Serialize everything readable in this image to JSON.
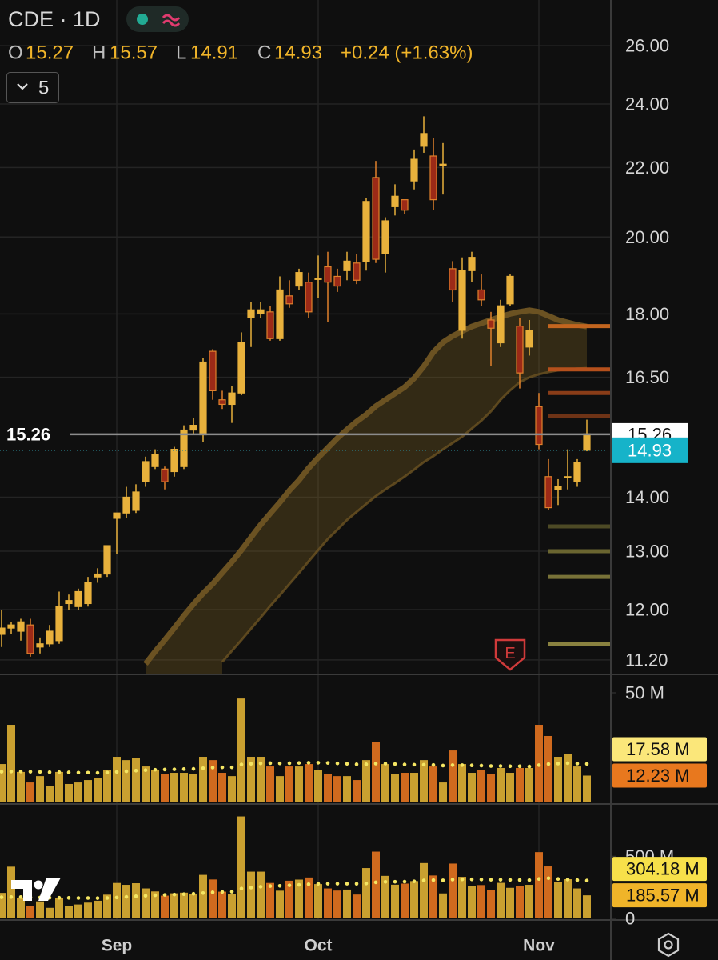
{
  "chart_data": [
    {
      "type": "candlestick",
      "title": "CDE · 1D",
      "indicator_count": "5",
      "ohlc_labels": [
        "O",
        "H",
        "L",
        "C"
      ],
      "change": "+0.24 (+1.63%)",
      "price_line": 15.26,
      "earnings_label": "E",
      "log_scale": true,
      "grid": true,
      "up_color": "#e8b13c",
      "down_color": "#9c2a17",
      "down_border": "#e0812c",
      "close_label_color": "#16b3c9",
      "categories": [
        null,
        null,
        null,
        null,
        null,
        null,
        null,
        null,
        null,
        null,
        null,
        null,
        "Sep",
        null,
        null,
        null,
        null,
        null,
        null,
        null,
        null,
        null,
        null,
        null,
        null,
        null,
        null,
        null,
        null,
        null,
        null,
        null,
        null,
        "Oct",
        null,
        null,
        null,
        null,
        null,
        null,
        null,
        null,
        null,
        null,
        null,
        null,
        null,
        null,
        null,
        null,
        null,
        null,
        null,
        null,
        null,
        null,
        "Nov",
        null,
        null,
        null,
        null,
        null
      ],
      "open": [
        11.6,
        11.7,
        11.65,
        11.75,
        11.4,
        11.45,
        11.5,
        12.1,
        12.05,
        12.1,
        12.55,
        12.6,
        13.6,
        13.7,
        13.75,
        14.3,
        14.6,
        14.55,
        14.5,
        14.6,
        15.35,
        15.25,
        17.1,
        16.0,
        15.9,
        16.15,
        17.9,
        18.0,
        18.05,
        17.4,
        18.25,
        18.7,
        18.05,
        18.9,
        19.2,
        18.95,
        19.1,
        19.3,
        19.35,
        21.7,
        20.45,
        20.85,
        21.05,
        21.6,
        22.65,
        22.35,
        22.1,
        19.15,
        17.6,
        19.1,
        18.6,
        17.85,
        17.3,
        18.95,
        17.7,
        17.6,
        15.85,
        14.4,
        14.15,
        14.4,
        14.3,
        15.27
      ],
      "high": [
        12.0,
        11.8,
        11.85,
        11.85,
        11.55,
        11.75,
        12.3,
        12.25,
        12.35,
        12.55,
        12.7,
        13.1,
        13.7,
        14.2,
        14.25,
        14.8,
        14.95,
        14.6,
        15.0,
        15.45,
        15.6,
        16.95,
        17.15,
        16.2,
        16.3,
        17.55,
        18.3,
        18.3,
        18.2,
        18.95,
        18.85,
        19.15,
        19.05,
        19.5,
        19.6,
        19.15,
        19.6,
        19.55,
        21.1,
        22.2,
        20.55,
        21.5,
        21.05,
        22.55,
        23.6,
        22.9,
        22.75,
        19.35,
        19.45,
        19.6,
        19.0,
        18.05,
        18.35,
        19.0,
        17.9,
        17.85,
        16.15,
        14.75,
        14.35,
        14.95,
        14.75,
        15.57
      ],
      "low": [
        11.4,
        11.6,
        11.5,
        11.25,
        11.3,
        11.4,
        11.45,
        12.0,
        12.0,
        12.05,
        12.45,
        12.55,
        12.95,
        13.6,
        13.7,
        14.2,
        14.55,
        14.15,
        14.4,
        14.55,
        15.25,
        15.1,
        16.0,
        15.8,
        15.5,
        16.1,
        17.2,
        17.9,
        17.35,
        17.35,
        18.15,
        18.6,
        17.9,
        18.4,
        17.8,
        18.55,
        18.85,
        18.75,
        19.1,
        19.3,
        19.05,
        20.6,
        20.65,
        21.35,
        22.45,
        20.75,
        21.2,
        18.3,
        17.4,
        18.8,
        18.2,
        16.75,
        17.2,
        18.2,
        16.25,
        17.0,
        14.95,
        13.75,
        13.85,
        14.15,
        14.2,
        14.91
      ],
      "close": [
        11.7,
        11.75,
        11.8,
        11.3,
        11.45,
        11.65,
        12.05,
        12.15,
        12.3,
        12.45,
        12.6,
        13.1,
        13.7,
        14.0,
        14.1,
        14.7,
        14.85,
        14.3,
        14.95,
        15.35,
        15.45,
        16.85,
        16.2,
        15.9,
        16.15,
        17.3,
        18.1,
        18.1,
        17.4,
        18.6,
        18.45,
        19.05,
        18.8,
        18.9,
        18.8,
        18.7,
        19.35,
        18.85,
        21.0,
        19.4,
        19.55,
        21.15,
        20.75,
        22.25,
        23.05,
        21.05,
        22.05,
        18.6,
        19.1,
        19.45,
        18.35,
        17.65,
        18.2,
        18.25,
        16.6,
        17.2,
        15.05,
        13.8,
        14.2,
        14.4,
        14.69,
        14.93
      ],
      "ribbon_upper": [
        null,
        null,
        null,
        null,
        null,
        null,
        null,
        null,
        null,
        null,
        null,
        null,
        null,
        null,
        null,
        11.14,
        11.33,
        11.51,
        11.7,
        11.9,
        12.09,
        12.27,
        12.43,
        12.62,
        12.81,
        13.02,
        13.25,
        13.48,
        13.69,
        13.9,
        14.13,
        14.33,
        14.57,
        14.78,
        14.98,
        15.18,
        15.36,
        15.53,
        15.68,
        15.86,
        16.0,
        16.14,
        16.28,
        16.48,
        16.75,
        17.08,
        17.31,
        17.46,
        17.58,
        17.69,
        17.77,
        17.85,
        17.93,
        18.0,
        18.05,
        18.09,
        18.05,
        17.95,
        17.85,
        17.79,
        17.73,
        17.69
      ],
      "ribbon_lower": [
        null,
        null,
        null,
        null,
        null,
        null,
        null,
        null,
        null,
        null,
        null,
        null,
        null,
        null,
        null,
        null,
        null,
        null,
        null,
        null,
        null,
        null,
        null,
        11.17,
        11.34,
        11.51,
        11.69,
        11.87,
        12.06,
        12.24,
        12.43,
        12.62,
        12.82,
        13.02,
        13.22,
        13.39,
        13.57,
        13.72,
        13.87,
        14.02,
        14.15,
        14.27,
        14.4,
        14.54,
        14.69,
        14.81,
        14.95,
        15.08,
        15.21,
        15.38,
        15.55,
        15.75,
        16.0,
        16.21,
        16.39,
        16.5,
        16.57,
        16.62,
        16.66,
        16.68,
        16.7,
        16.71
      ],
      "ribbon_color": "#6b5222",
      "levels": [
        {
          "value": 17.7,
          "color": "#c2651f"
        },
        {
          "value": 16.68,
          "color": "#b5501c"
        },
        {
          "value": 16.15,
          "color": "#8a3d18"
        },
        {
          "value": 15.65,
          "color": "#6e3316"
        },
        {
          "value": 13.45,
          "color": "#4d4a25"
        },
        {
          "value": 13.0,
          "color": "#6a6530"
        },
        {
          "value": 12.55,
          "color": "#787238"
        },
        {
          "value": 11.45,
          "color": "#8a8240"
        }
      ],
      "ylim": [
        10.98,
        27.68
      ],
      "yticks": [
        {
          "value": 26,
          "label": "26.00"
        },
        {
          "value": 24,
          "label": "24.00"
        },
        {
          "value": 22,
          "label": "22.00"
        },
        {
          "value": 20,
          "label": "20.00"
        },
        {
          "value": 18,
          "label": "18.00"
        },
        {
          "value": 16.5,
          "label": "16.50"
        },
        {
          "value": 14,
          "label": "14.00"
        },
        {
          "value": 13,
          "label": "13.00"
        },
        {
          "value": 12,
          "label": "12.00"
        },
        {
          "value": 11.2,
          "label": "11.20"
        }
      ]
    },
    {
      "type": "bar",
      "ylim": [
        0,
        58.4
      ],
      "yticks": [
        {
          "value": 50,
          "label": "50 M"
        }
      ],
      "series": [
        {
          "up_color": "#c9a030",
          "down_color": "#d06a1e",
          "label_color": "#e8781e",
          "values": [
            17.5,
            35.4,
            13.9,
            9.1,
            12.0,
            7.3,
            13.9,
            8.4,
            9.1,
            10.2,
            11.3,
            14.6,
            20.8,
            19.3,
            20.1,
            16.4,
            14.6,
            12.8,
            13.5,
            13.5,
            12.8,
            20.8,
            19.3,
            13.5,
            12.0,
            47.4,
            20.8,
            20.8,
            16.4,
            12.0,
            16.4,
            16.4,
            17.5,
            14.6,
            12.8,
            12.0,
            12.0,
            10.2,
            19.3,
            27.7,
            17.5,
            12.8,
            13.5,
            13.5,
            19.3,
            16.4,
            9.1,
            23.7,
            17.5,
            13.5,
            14.6,
            12.8,
            15.7,
            13.5,
            15.7,
            15.7,
            35.4,
            30.3,
            20.8,
            21.9,
            16.4,
            12.23
          ],
          "value_labels": [
            null,
            null,
            null,
            null,
            null,
            null,
            null,
            null,
            null,
            null,
            null,
            null,
            null,
            null,
            null,
            null,
            null,
            null,
            null,
            null,
            null,
            null,
            null,
            null,
            null,
            null,
            null,
            null,
            null,
            null,
            null,
            null,
            null,
            null,
            null,
            null,
            null,
            null,
            null,
            null,
            null,
            null,
            null,
            null,
            null,
            null,
            null,
            null,
            null,
            null,
            null,
            null,
            null,
            null,
            null,
            null,
            null,
            null,
            null,
            null,
            null,
            "12.23 M"
          ]
        },
        {
          "style": "dots",
          "color": "#f5e663",
          "label_color": "#fbe77a",
          "values": [
            14.0,
            14.1,
            14.1,
            14.0,
            13.9,
            13.8,
            13.8,
            13.7,
            13.6,
            13.6,
            13.5,
            13.6,
            13.9,
            14.2,
            14.5,
            14.7,
            14.9,
            15.0,
            15.1,
            15.2,
            15.3,
            15.6,
            15.9,
            16.0,
            16.0,
            17.3,
            17.6,
            17.8,
            17.9,
            17.8,
            17.9,
            18.0,
            18.1,
            18.1,
            18.0,
            17.8,
            17.6,
            17.4,
            17.4,
            17.7,
            17.7,
            17.5,
            17.3,
            17.2,
            17.2,
            17.1,
            16.8,
            17.0,
            17.0,
            16.9,
            16.8,
            16.6,
            16.6,
            16.5,
            16.5,
            16.4,
            17.0,
            17.5,
            17.7,
            17.9,
            17.7,
            17.58
          ],
          "value_labels": [
            null,
            null,
            null,
            null,
            null,
            null,
            null,
            null,
            null,
            null,
            null,
            null,
            null,
            null,
            null,
            null,
            null,
            null,
            null,
            null,
            null,
            null,
            null,
            null,
            null,
            null,
            null,
            null,
            null,
            null,
            null,
            null,
            null,
            null,
            null,
            null,
            null,
            null,
            null,
            null,
            null,
            null,
            null,
            null,
            null,
            null,
            null,
            null,
            null,
            null,
            null,
            null,
            null,
            null,
            null,
            null,
            null,
            null,
            null,
            null,
            null,
            "17.58 M"
          ]
        }
      ]
    },
    {
      "type": "bar",
      "ylim": [
        0,
        920
      ],
      "yticks": [
        0,
        {
          "value": 500,
          "label": "500 M"
        }
      ],
      "series": [
        {
          "up_color": "#c9a030",
          "down_color": "#d06a1e",
          "label_color": "#f0b429",
          "values": [
            205,
            416,
            164,
            103,
            137,
            85,
            167,
            102,
            112,
            127,
            142,
            191,
            285,
            270,
            283,
            241,
            217,
            183,
            202,
            207,
            198,
            350,
            313,
            215,
            194,
            820,
            376,
            376,
            285,
            223,
            303,
            312,
            329,
            276,
            241,
            224,
            232,
            192,
            405,
            537,
            342,
            271,
            280,
            300,
            445,
            345,
            201,
            441,
            334,
            263,
            268,
            226,
            286,
            246,
            261,
            270,
            533,
            418,
            295,
            315,
            241,
            185.57
          ],
          "value_labels": [
            null,
            null,
            null,
            null,
            null,
            null,
            null,
            null,
            null,
            null,
            null,
            null,
            null,
            null,
            null,
            null,
            null,
            null,
            null,
            null,
            null,
            null,
            null,
            null,
            null,
            null,
            null,
            null,
            null,
            null,
            null,
            null,
            null,
            null,
            null,
            null,
            null,
            null,
            null,
            null,
            null,
            null,
            null,
            null,
            null,
            null,
            null,
            null,
            null,
            null,
            null,
            null,
            null,
            null,
            null,
            null,
            null,
            null,
            null,
            null,
            null,
            "185.57 M"
          ]
        },
        {
          "style": "dots",
          "color": "#f5e663",
          "label_color": "#f7e04a",
          "values": [
            170,
            172,
            172,
            170,
            168,
            166,
            166,
            165,
            164,
            164,
            163,
            164,
            168,
            173,
            178,
            182,
            186,
            189,
            192,
            195,
            198,
            204,
            210,
            213,
            215,
            240,
            248,
            255,
            260,
            262,
            266,
            270,
            275,
            278,
            279,
            279,
            279,
            278,
            281,
            290,
            294,
            295,
            296,
            298,
            305,
            308,
            306,
            312,
            314,
            314,
            313,
            311,
            311,
            310,
            309,
            308,
            317,
            323,
            317,
            312,
            308,
            304.18
          ],
          "value_labels": [
            null,
            null,
            null,
            null,
            null,
            null,
            null,
            null,
            null,
            null,
            null,
            null,
            null,
            null,
            null,
            null,
            null,
            null,
            null,
            null,
            null,
            null,
            null,
            null,
            null,
            null,
            null,
            null,
            null,
            null,
            null,
            null,
            null,
            null,
            null,
            null,
            null,
            null,
            null,
            null,
            null,
            null,
            null,
            null,
            null,
            null,
            null,
            null,
            null,
            null,
            null,
            null,
            null,
            null,
            null,
            null,
            null,
            null,
            null,
            null,
            null,
            "304.18 M"
          ]
        }
      ]
    }
  ]
}
